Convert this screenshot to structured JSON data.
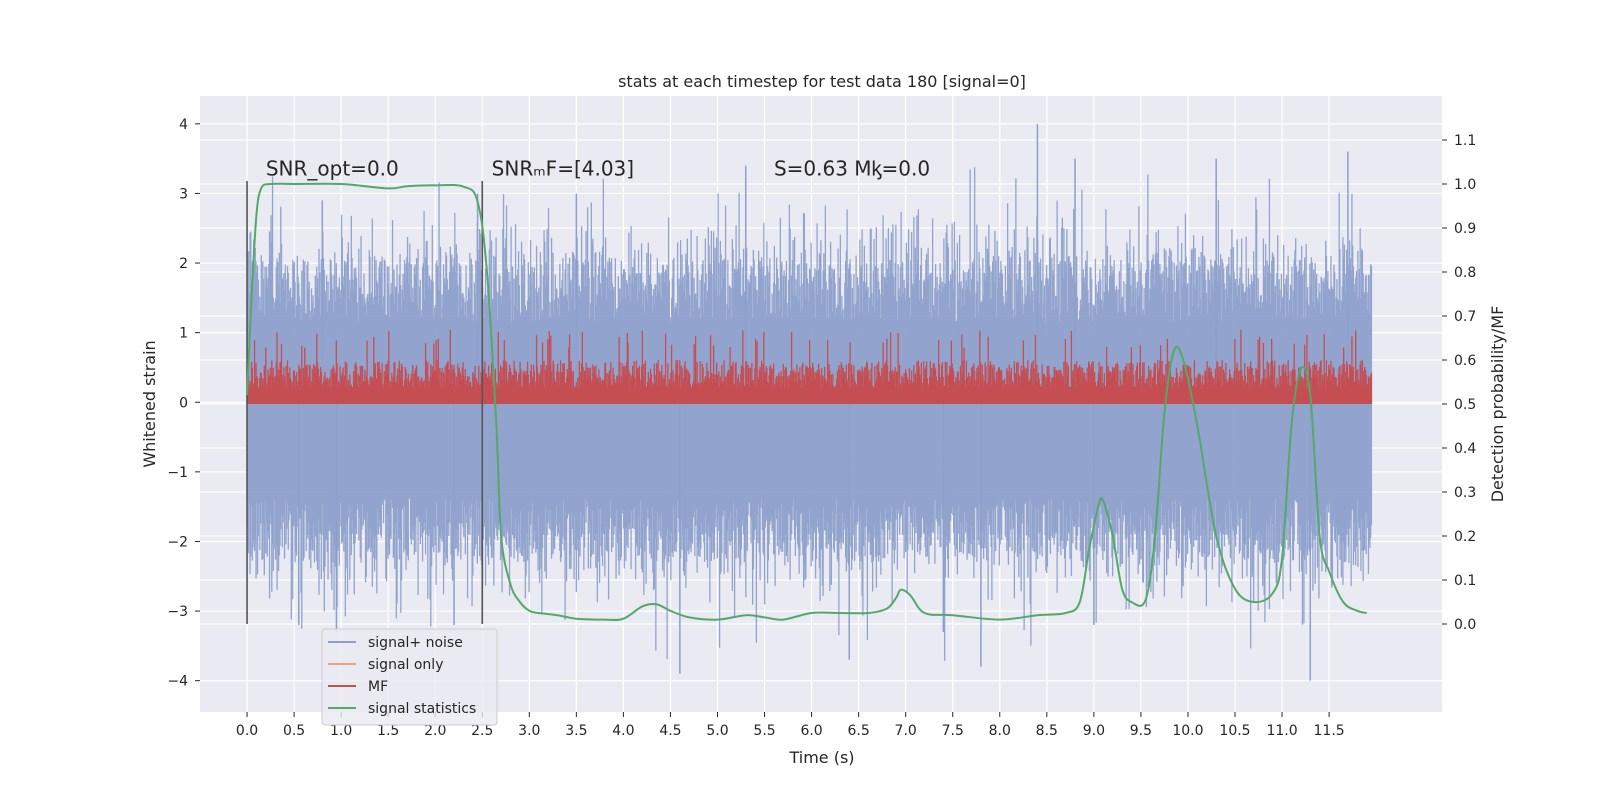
{
  "chart_data": {
    "type": "line",
    "title": "stats at each timestep for test data 180 [signal=0]",
    "xlabel": "Time (s)",
    "ylabel_left": "Whitened strain",
    "ylabel_right": "Detection probability/MF",
    "xlim": [
      -0.5,
      12.7
    ],
    "ylim_left": [
      -4.45,
      4.4
    ],
    "ylim_right": [
      -0.2,
      1.2
    ],
    "x_ticks": [
      0.0,
      0.5,
      1.0,
      1.5,
      2.0,
      2.5,
      3.0,
      3.5,
      4.0,
      4.5,
      5.0,
      5.5,
      6.0,
      6.5,
      7.0,
      7.5,
      8.0,
      8.5,
      9.0,
      9.5,
      10.0,
      10.5,
      11.0,
      11.5
    ],
    "x_tick_labels": [
      "0.0",
      "0.5",
      "1.0",
      "1.5",
      "2.0",
      "2.5",
      "3.0",
      "3.5",
      "4.0",
      "4.5",
      "5.0",
      "5.5",
      "6.0",
      "6.5",
      "7.0",
      "7.5",
      "8.0",
      "8.5",
      "9.0",
      "9.5",
      "10.0",
      "10.5",
      "11.0",
      "11.5"
    ],
    "y_left_ticks": [
      -4,
      -3,
      -2,
      -1,
      0,
      1,
      2,
      3,
      4
    ],
    "y_left_tick_labels": [
      "−4",
      "−3",
      "−2",
      "−1",
      "0",
      "1",
      "2",
      "3",
      "4"
    ],
    "y_right_ticks": [
      0.0,
      0.1,
      0.2,
      0.3,
      0.4,
      0.5,
      0.6,
      0.7,
      0.8,
      0.9,
      1.0,
      1.1
    ],
    "y_right_tick_labels": [
      "0.0",
      "0.1",
      "0.2",
      "0.3",
      "0.4",
      "0.5",
      "0.6",
      "0.7",
      "0.8",
      "0.9",
      "1.0",
      "1.1"
    ],
    "grid": true,
    "vlines": [
      0.0,
      2.5
    ],
    "annotations": [
      {
        "text": "SNR_opt=0.0",
        "x": 0.2,
        "y": 3.2
      },
      {
        "text": "SNRₘF=[4.03]",
        "x": 2.6,
        "y": 3.2
      },
      {
        "text": "S=0.63   Mᶄ=0.0",
        "x": 5.6,
        "y": 3.2
      }
    ],
    "legend_position": "lower-left",
    "series": [
      {
        "name": "signal+ noise",
        "axis": "left",
        "color": "#8da0cb",
        "kind": "noise",
        "x_range": [
          0.0,
          11.95
        ],
        "envelope": {
          "typical_range": [
            -2.3,
            2.1
          ],
          "extremes": [
            -3.95,
            4.0
          ]
        },
        "spike_x": [
          0.55,
          0.8,
          0.95,
          2.2,
          2.45,
          3.5,
          4.6,
          5.3,
          6.4,
          7.4,
          7.8,
          8.4,
          8.8,
          9.0,
          10.3,
          11.3,
          11.7
        ],
        "spike_y": [
          -3.2,
          2.9,
          -3.3,
          -3.2,
          3.0,
          3.0,
          -3.9,
          3.4,
          -3.7,
          -3.3,
          -3.8,
          4.0,
          3.5,
          -3.2,
          3.5,
          -4.0,
          3.6
        ]
      },
      {
        "name": "signal only",
        "axis": "left",
        "color": "#e8a27c",
        "kind": "line",
        "x": [
          0.0,
          11.95
        ],
        "y": [
          0.0,
          0.0
        ]
      },
      {
        "name": "MF",
        "axis": "right",
        "color": "#c44e52",
        "kind": "noise",
        "x_range": [
          0.0,
          11.95
        ],
        "envelope": {
          "typical_range": [
            0.5,
            0.6
          ],
          "extremes": [
            0.5,
            0.67
          ]
        }
      },
      {
        "name": "signal statistics",
        "axis": "right",
        "color": "#55a868",
        "kind": "line",
        "x": [
          0.0,
          0.05,
          0.1,
          0.15,
          0.25,
          0.5,
          1.0,
          1.5,
          1.7,
          2.0,
          2.3,
          2.45,
          2.55,
          2.65,
          2.7,
          2.8,
          2.9,
          3.0,
          3.1,
          3.3,
          3.5,
          3.8,
          4.0,
          4.2,
          4.35,
          4.5,
          4.7,
          5.0,
          5.3,
          5.5,
          5.7,
          6.0,
          6.3,
          6.6,
          6.8,
          6.9,
          6.95,
          7.05,
          7.2,
          7.5,
          8.0,
          8.4,
          8.7,
          8.85,
          8.95,
          9.05,
          9.1,
          9.2,
          9.3,
          9.4,
          9.55,
          9.65,
          9.75,
          9.85,
          9.95,
          10.1,
          10.3,
          10.5,
          10.7,
          10.9,
          11.0,
          11.1,
          11.2,
          11.3,
          11.4,
          11.5,
          11.65,
          11.8,
          11.9
        ],
        "y": [
          0.52,
          0.75,
          0.93,
          0.99,
          1.0,
          1.0,
          1.0,
          0.99,
          0.995,
          0.997,
          0.994,
          0.96,
          0.8,
          0.45,
          0.2,
          0.09,
          0.05,
          0.03,
          0.025,
          0.02,
          0.012,
          0.01,
          0.012,
          0.04,
          0.045,
          0.03,
          0.015,
          0.01,
          0.02,
          0.015,
          0.01,
          0.025,
          0.025,
          0.025,
          0.035,
          0.06,
          0.078,
          0.065,
          0.025,
          0.02,
          0.01,
          0.02,
          0.025,
          0.05,
          0.17,
          0.27,
          0.28,
          0.2,
          0.08,
          0.05,
          0.055,
          0.2,
          0.48,
          0.62,
          0.6,
          0.45,
          0.2,
          0.08,
          0.05,
          0.07,
          0.15,
          0.45,
          0.58,
          0.52,
          0.2,
          0.12,
          0.05,
          0.03,
          0.025
        ]
      }
    ]
  }
}
